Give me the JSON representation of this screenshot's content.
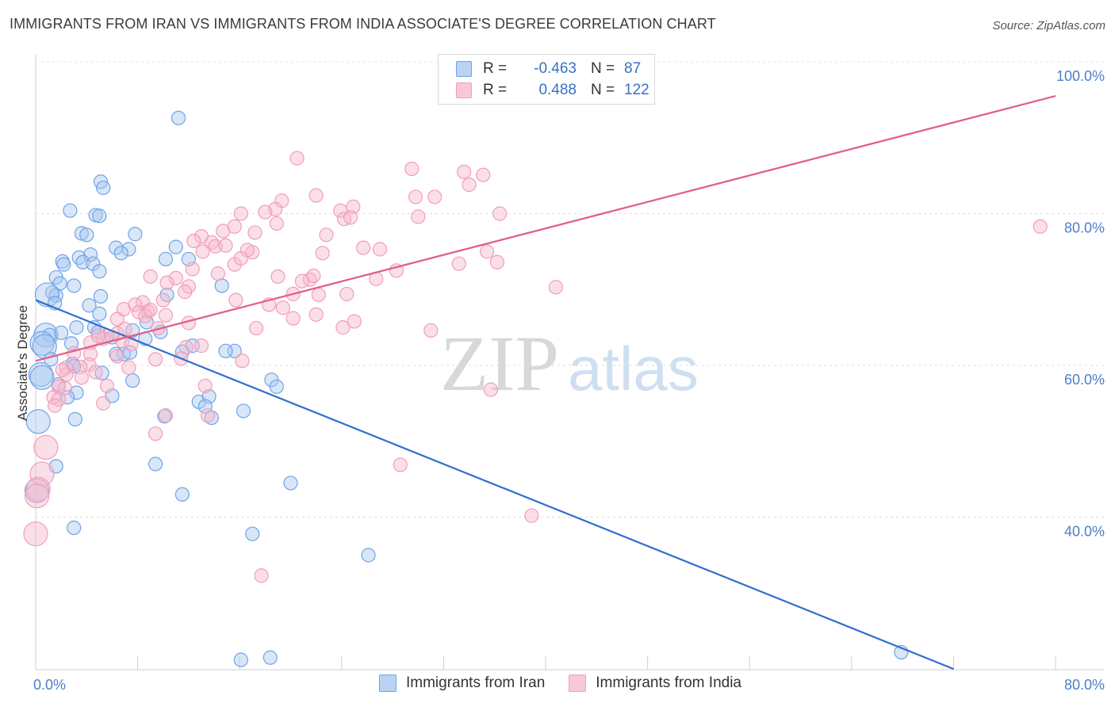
{
  "header": {
    "title": "IMMIGRANTS FROM IRAN VS IMMIGRANTS FROM INDIA ASSOCIATE'S DEGREE CORRELATION CHART",
    "source": "Source: ZipAtlas.com"
  },
  "watermark": {
    "zip": "ZIP",
    "atlas": "atlas"
  },
  "legend": {
    "rows": [
      {
        "r_label": "R =",
        "r_value": "-0.463",
        "n_label": "N =",
        "n_value": "87"
      },
      {
        "r_label": "R =",
        "r_value": "0.488",
        "n_label": "N =",
        "n_value": "122"
      }
    ]
  },
  "bottom_legend": {
    "iran": "Immigrants from Iran",
    "india": "Immigrants from India"
  },
  "chart_data": {
    "type": "scatter",
    "title": "IMMIGRANTS FROM IRAN VS IMMIGRANTS FROM INDIA ASSOCIATE'S DEGREE CORRELATION CHART",
    "ylabel": "Associate's Degree",
    "xlabel": "",
    "xlim": [
      0,
      80
    ],
    "ylim": [
      20,
      100
    ],
    "x_tick_labels": [
      "0.0%",
      "80.0%"
    ],
    "y_tick_labels": [
      "40.0%",
      "60.0%",
      "80.0%",
      "100.0%"
    ],
    "y_tick_values": [
      40,
      60,
      80,
      100
    ],
    "grid": true,
    "legend_position": "top-center",
    "colors": {
      "iran": "#6fa3e8",
      "iran_line": "#2f6fcf",
      "india": "#f29db8",
      "india_line": "#e0608a"
    },
    "series": [
      {
        "name": "Immigrants from Iran",
        "r": -0.463,
        "n": 87,
        "trend": {
          "x": [
            0,
            72
          ],
          "y": [
            68.6,
            20.0
          ]
        },
        "points": [
          [
            11.2,
            92.6
          ],
          [
            5.1,
            84.2
          ],
          [
            5.3,
            83.4
          ],
          [
            2.7,
            80.4
          ],
          [
            4.7,
            79.8
          ],
          [
            5.0,
            79.7
          ],
          [
            3.6,
            77.4
          ],
          [
            4.0,
            77.2
          ],
          [
            7.8,
            77.3
          ],
          [
            6.3,
            75.5
          ],
          [
            7.3,
            75.3
          ],
          [
            11.0,
            75.6
          ],
          [
            6.7,
            74.8
          ],
          [
            4.3,
            74.6
          ],
          [
            3.4,
            74.2
          ],
          [
            3.7,
            73.6
          ],
          [
            12.0,
            74.0
          ],
          [
            10.2,
            74.0
          ],
          [
            2.1,
            73.7
          ],
          [
            2.2,
            73.3
          ],
          [
            4.5,
            73.4
          ],
          [
            5.0,
            72.4
          ],
          [
            1.6,
            71.6
          ],
          [
            1.9,
            70.8
          ],
          [
            3.0,
            70.5
          ],
          [
            14.6,
            70.5
          ],
          [
            1.3,
            69.6
          ],
          [
            1.6,
            69.2
          ],
          [
            0.9,
            69.3
          ],
          [
            5.1,
            69.1
          ],
          [
            1.5,
            68.2
          ],
          [
            4.2,
            67.9
          ],
          [
            8.7,
            65.7
          ],
          [
            5.0,
            66.8
          ],
          [
            0.8,
            64.0
          ],
          [
            1.1,
            64.0
          ],
          [
            2.0,
            64.3
          ],
          [
            3.2,
            65.0
          ],
          [
            4.6,
            65.0
          ],
          [
            4.9,
            64.4
          ],
          [
            6.0,
            63.7
          ],
          [
            8.6,
            63.5
          ],
          [
            9.8,
            64.4
          ],
          [
            7.6,
            64.6
          ],
          [
            0.5,
            62.9
          ],
          [
            0.7,
            62.5
          ],
          [
            2.8,
            62.9
          ],
          [
            12.3,
            62.6
          ],
          [
            15.6,
            61.9
          ],
          [
            11.5,
            61.8
          ],
          [
            6.9,
            61.5
          ],
          [
            14.9,
            61.9
          ],
          [
            1.2,
            60.8
          ],
          [
            2.9,
            60.2
          ],
          [
            3.0,
            59.9
          ],
          [
            0.4,
            58.8
          ],
          [
            0.5,
            58.4
          ],
          [
            5.2,
            59.0
          ],
          [
            7.6,
            58.0
          ],
          [
            18.5,
            58.1
          ],
          [
            1.8,
            57.5
          ],
          [
            3.2,
            56.4
          ],
          [
            6.0,
            56.0
          ],
          [
            18.9,
            57.2
          ],
          [
            2.5,
            55.8
          ],
          [
            12.8,
            55.2
          ],
          [
            13.6,
            55.9
          ],
          [
            16.3,
            54.0
          ],
          [
            13.3,
            54.6
          ],
          [
            3.1,
            52.9
          ],
          [
            10.1,
            53.3
          ],
          [
            0.2,
            52.6
          ],
          [
            13.8,
            53.1
          ],
          [
            9.4,
            47.0
          ],
          [
            1.6,
            46.7
          ],
          [
            20.0,
            44.5
          ],
          [
            11.5,
            43.0
          ],
          [
            0.1,
            43.5
          ],
          [
            3.0,
            38.6
          ],
          [
            17.0,
            37.8
          ],
          [
            26.1,
            35.0
          ],
          [
            6.3,
            61.5
          ],
          [
            7.4,
            61.7
          ],
          [
            18.4,
            21.5
          ],
          [
            67.9,
            22.2
          ],
          [
            16.1,
            21.2
          ],
          [
            10.3,
            69.3
          ]
        ]
      },
      {
        "name": "Immigrants from India",
        "r": 0.488,
        "n": 122,
        "trend": {
          "x": [
            0,
            80
          ],
          "y": [
            60.6,
            95.5
          ]
        },
        "points": [
          [
            20.5,
            87.3
          ],
          [
            29.5,
            85.9
          ],
          [
            33.6,
            85.5
          ],
          [
            35.1,
            85.1
          ],
          [
            34.0,
            83.8
          ],
          [
            22.0,
            82.4
          ],
          [
            29.8,
            82.2
          ],
          [
            30.0,
            79.6
          ],
          [
            19.3,
            81.7
          ],
          [
            18.8,
            80.6
          ],
          [
            18.0,
            80.2
          ],
          [
            23.9,
            80.4
          ],
          [
            24.9,
            80.9
          ],
          [
            16.1,
            80.0
          ],
          [
            24.2,
            79.3
          ],
          [
            36.4,
            80.0
          ],
          [
            18.9,
            78.7
          ],
          [
            14.7,
            77.7
          ],
          [
            15.6,
            78.3
          ],
          [
            17.2,
            77.5
          ],
          [
            22.8,
            77.2
          ],
          [
            13.0,
            77.0
          ],
          [
            24.7,
            79.5
          ],
          [
            12.4,
            76.4
          ],
          [
            13.8,
            76.2
          ],
          [
            14.1,
            75.7
          ],
          [
            25.7,
            75.5
          ],
          [
            27.0,
            75.3
          ],
          [
            35.4,
            75.0
          ],
          [
            17.0,
            74.9
          ],
          [
            15.6,
            73.3
          ],
          [
            36.2,
            73.6
          ],
          [
            12.3,
            72.7
          ],
          [
            14.3,
            72.1
          ],
          [
            21.5,
            71.3
          ],
          [
            26.7,
            71.4
          ],
          [
            9.0,
            71.7
          ],
          [
            11.0,
            71.5
          ],
          [
            10.3,
            70.9
          ],
          [
            12.0,
            70.4
          ],
          [
            20.2,
            69.4
          ],
          [
            22.2,
            69.3
          ],
          [
            11.7,
            69.7
          ],
          [
            40.8,
            70.3
          ],
          [
            10.0,
            68.6
          ],
          [
            8.4,
            68.3
          ],
          [
            7.8,
            68.0
          ],
          [
            18.3,
            68.0
          ],
          [
            15.7,
            68.6
          ],
          [
            19.4,
            67.6
          ],
          [
            22.0,
            66.7
          ],
          [
            6.9,
            67.4
          ],
          [
            8.1,
            67.0
          ],
          [
            8.8,
            67.1
          ],
          [
            20.2,
            66.2
          ],
          [
            6.4,
            66.1
          ],
          [
            10.2,
            66.6
          ],
          [
            25.0,
            65.8
          ],
          [
            12.0,
            65.6
          ],
          [
            24.1,
            65.0
          ],
          [
            9.6,
            64.9
          ],
          [
            17.3,
            64.9
          ],
          [
            31.0,
            64.6
          ],
          [
            6.4,
            64.2
          ],
          [
            5.6,
            63.9
          ],
          [
            5.3,
            63.5
          ],
          [
            6.8,
            63.2
          ],
          [
            4.3,
            63.0
          ],
          [
            7.5,
            62.8
          ],
          [
            11.8,
            62.4
          ],
          [
            13.0,
            62.6
          ],
          [
            3.0,
            61.6
          ],
          [
            4.3,
            61.5
          ],
          [
            6.4,
            61.2
          ],
          [
            9.4,
            60.8
          ],
          [
            11.4,
            60.9
          ],
          [
            16.2,
            60.6
          ],
          [
            4.2,
            60.1
          ],
          [
            3.5,
            59.8
          ],
          [
            2.4,
            59.7
          ],
          [
            7.3,
            59.7
          ],
          [
            4.7,
            59.1
          ],
          [
            2.4,
            58.8
          ],
          [
            3.6,
            58.4
          ],
          [
            1.8,
            57.2
          ],
          [
            2.3,
            57.0
          ],
          [
            13.3,
            57.3
          ],
          [
            35.7,
            56.8
          ],
          [
            1.4,
            55.8
          ],
          [
            1.8,
            55.5
          ],
          [
            5.3,
            55.0
          ],
          [
            1.5,
            54.7
          ],
          [
            10.2,
            53.4
          ],
          [
            13.5,
            53.4
          ],
          [
            0.8,
            49.2
          ],
          [
            9.4,
            51.0
          ],
          [
            28.6,
            46.9
          ],
          [
            0.5,
            45.7
          ],
          [
            0.2,
            43.7
          ],
          [
            0.1,
            42.8
          ],
          [
            38.9,
            40.2
          ],
          [
            0.0,
            37.8
          ],
          [
            17.7,
            32.3
          ],
          [
            16.6,
            75.2
          ],
          [
            7.0,
            64.8
          ],
          [
            14.9,
            75.8
          ],
          [
            21.8,
            71.8
          ],
          [
            31.3,
            82.2
          ],
          [
            22.5,
            74.8
          ],
          [
            78.8,
            78.3
          ],
          [
            24.4,
            69.4
          ],
          [
            8.6,
            66.5
          ],
          [
            4.9,
            63.9
          ],
          [
            2.1,
            59.4
          ],
          [
            13.1,
            75.0
          ],
          [
            16.1,
            74.1
          ],
          [
            20.9,
            71.1
          ],
          [
            19.0,
            71.7
          ],
          [
            33.2,
            73.4
          ],
          [
            28.3,
            72.5
          ],
          [
            5.6,
            57.3
          ],
          [
            9.0,
            67.3
          ]
        ]
      }
    ]
  }
}
